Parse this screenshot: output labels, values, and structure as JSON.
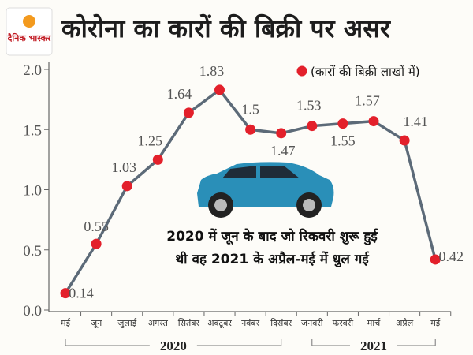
{
  "chart_data": {
    "type": "line",
    "logo": "दैनिक भास्कर",
    "title": "कोरोना का कारों की बिक्री पर असर",
    "categories": [
      "मई",
      "जून",
      "जुलाई",
      "अगस्त",
      "सितंबर",
      "अक्टूबर",
      "नवंबर",
      "दिसंबर",
      "जनवरी",
      "फरवरी",
      "मार्च",
      "अप्रैल",
      "मई"
    ],
    "x_groups": [
      {
        "label": "2020",
        "span": [
          0,
          7
        ]
      },
      {
        "label": "2021",
        "span": [
          8,
          12
        ]
      }
    ],
    "series": [
      {
        "name": "(कारों की बिक्री लाखों में)",
        "color": "#e3202b",
        "line_color": "#5c6a78",
        "values": [
          0.14,
          0.55,
          1.03,
          1.25,
          1.64,
          1.83,
          1.5,
          1.47,
          1.53,
          1.55,
          1.57,
          1.41,
          0.42
        ]
      }
    ],
    "ylim": [
      0,
      2.0
    ],
    "yticks": [
      {
        "value": 0,
        "label": "0.0"
      },
      {
        "value": 0.5,
        "label": "0.5"
      },
      {
        "value": 1.0,
        "label": "1.0"
      },
      {
        "value": 1.5,
        "label": "1.5"
      },
      {
        "value": 2.0,
        "label": "2.0"
      }
    ],
    "grid": false,
    "legend": "upper right",
    "annotation": [
      "2020 में जून के बाद जो रिकवरी शुरू हुई",
      "थी वह 2021 के अप्रैल-मई में धुल गई"
    ]
  }
}
